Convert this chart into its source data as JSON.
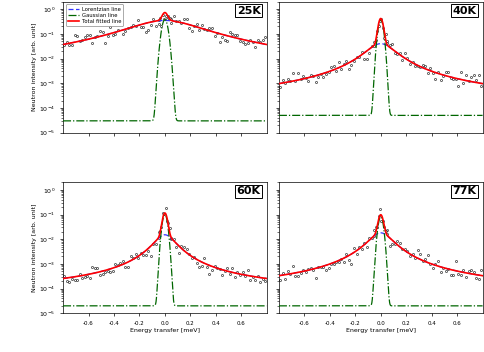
{
  "temperatures": [
    "25K",
    "40K",
    "60K",
    "77K"
  ],
  "lorentzian_color": "#3333FF",
  "gaussian_color": "#006600",
  "total_color": "#FF0000",
  "xlim": [
    -0.8,
    0.8
  ],
  "ylim": [
    1e-05,
    2.0
  ],
  "xlabel": "Energy transfer [meV]",
  "ylabel": "Neutron intensity [arb. unit]",
  "legend_labels": [
    "Lorentzian line",
    "Gaussian line",
    "Total fitted line"
  ],
  "panel_params": {
    "25K": {
      "lorentz_amp": 0.35,
      "lorentz_fwhm": 0.55,
      "gauss_amp": 0.38,
      "gauss_fwhm": 0.045,
      "bg_flat": 3e-05,
      "bg_broad_amp": 0.0002,
      "bg_broad_fwhm": 3.0,
      "gauss_bg_flat": 3e-05,
      "peak_visible": 0.45,
      "ylim": [
        1e-05,
        2.0
      ]
    },
    "40K": {
      "lorentz_amp": 0.04,
      "lorentz_fwhm": 0.22,
      "gauss_amp": 0.38,
      "gauss_fwhm": 0.038,
      "bg_flat": 7e-05,
      "bg_broad_amp": 0.0002,
      "bg_broad_fwhm": 3.0,
      "gauss_bg_flat": 5e-05,
      "peak_visible": 0.42,
      "ylim": [
        1e-05,
        2.0
      ]
    },
    "60K": {
      "lorentz_amp": 0.015,
      "lorentz_fwhm": 0.16,
      "gauss_amp": 0.1,
      "gauss_fwhm": 0.038,
      "bg_flat": 3e-05,
      "bg_broad_amp": 0.0001,
      "bg_broad_fwhm": 3.0,
      "gauss_bg_flat": 2e-05,
      "peak_visible": 0.12,
      "ylim": [
        1e-05,
        2.0
      ]
    },
    "77K": {
      "lorentz_amp": 0.018,
      "lorentz_fwhm": 0.18,
      "gauss_amp": 0.08,
      "gauss_fwhm": 0.038,
      "bg_flat": 3e-05,
      "bg_broad_amp": 0.0001,
      "bg_broad_fwhm": 3.0,
      "gauss_bg_flat": 2e-05,
      "peak_visible": 0.1,
      "ylim": [
        1e-05,
        2.0
      ]
    }
  }
}
